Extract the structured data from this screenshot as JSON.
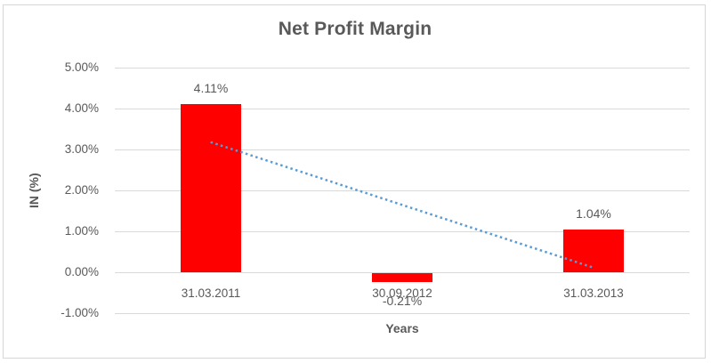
{
  "chart_data": {
    "type": "bar",
    "title": "Net Profit Margin",
    "xlabel": "Years",
    "ylabel": "IN (%)",
    "categories": [
      "31.03.2011",
      "30.09.2012",
      "31.03.2013"
    ],
    "values": [
      4.11,
      -0.21,
      1.04
    ],
    "data_labels": [
      "4.11%",
      "-0.21%",
      "1.04%"
    ],
    "ylim": [
      -1,
      5
    ],
    "yticks": [
      {
        "value": 5,
        "label": "5.00%"
      },
      {
        "value": 4,
        "label": "4.00%"
      },
      {
        "value": 3,
        "label": "3.00%"
      },
      {
        "value": 2,
        "label": "2.00%"
      },
      {
        "value": 1,
        "label": "1.00%"
      },
      {
        "value": 0,
        "label": "0.00%"
      },
      {
        "value": -1,
        "label": "-1.00%"
      }
    ],
    "grid": true,
    "legend": "none",
    "colors": {
      "bar": "#ff0000",
      "gridline": "#d9d9d9",
      "text": "#595959",
      "frame_border": "#d7d7d7",
      "trendline": "#5b9bd5"
    },
    "trendline": {
      "type": "linear",
      "style": "dotted",
      "start_value": 3.18,
      "end_value": 0.11
    }
  }
}
